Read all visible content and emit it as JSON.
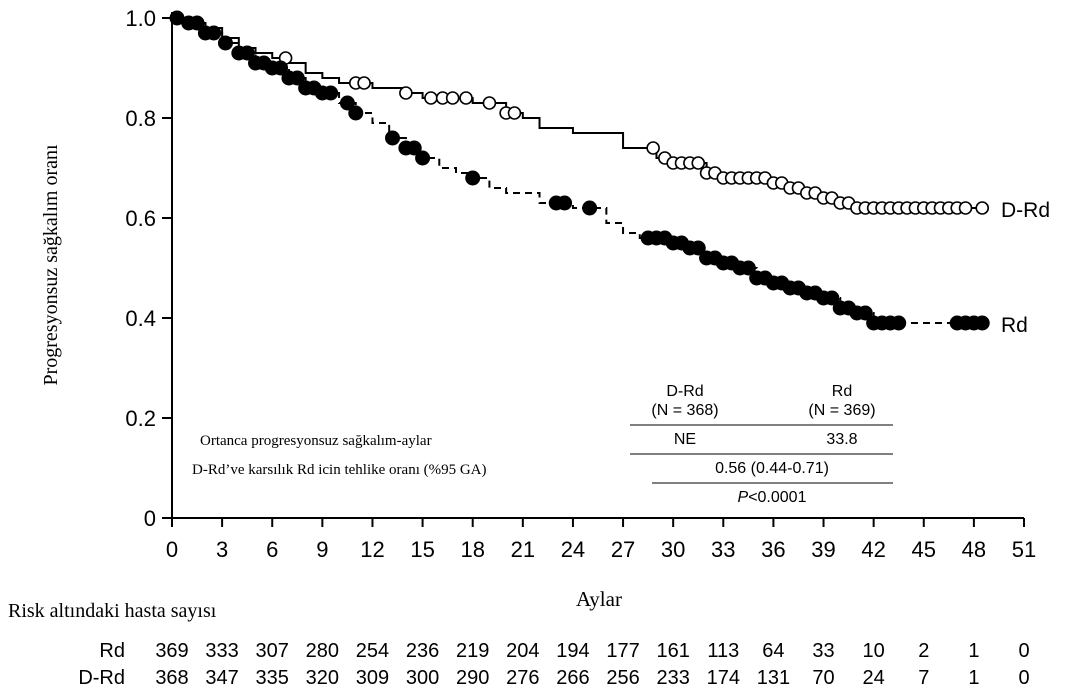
{
  "chart_data": {
    "type": "line",
    "subtype": "kaplan-meier",
    "title": "",
    "xlabel": "Aylar",
    "ylabel": "Progresyonsuz sağkalım oranı",
    "xlim": [
      0,
      51
    ],
    "ylim": [
      0,
      1.0
    ],
    "x_ticks": [
      0,
      3,
      6,
      9,
      12,
      15,
      18,
      21,
      24,
      27,
      30,
      33,
      36,
      39,
      42,
      45,
      48,
      51
    ],
    "y_ticks": [
      "0",
      "0.2",
      "0.4",
      "0.6",
      "0.8",
      "1.0"
    ],
    "grid": false,
    "series": [
      {
        "name": "D-Rd",
        "color": "#000000",
        "line_style": "solid",
        "censor_marker": "open-circle",
        "points": [
          [
            0,
            1.0
          ],
          [
            1,
            0.99
          ],
          [
            2,
            0.98
          ],
          [
            3,
            0.96
          ],
          [
            4,
            0.94
          ],
          [
            5,
            0.93
          ],
          [
            6,
            0.92
          ],
          [
            7,
            0.91
          ],
          [
            8,
            0.89
          ],
          [
            9,
            0.88
          ],
          [
            10,
            0.87
          ],
          [
            12,
            0.86
          ],
          [
            14,
            0.85
          ],
          [
            15,
            0.84
          ],
          [
            16,
            0.84
          ],
          [
            18,
            0.83
          ],
          [
            20,
            0.81
          ],
          [
            21,
            0.8
          ],
          [
            22,
            0.78
          ],
          [
            24,
            0.77
          ],
          [
            27,
            0.74
          ],
          [
            29,
            0.72
          ],
          [
            30,
            0.71
          ],
          [
            32,
            0.69
          ],
          [
            33,
            0.68
          ],
          [
            36,
            0.67
          ],
          [
            37,
            0.66
          ],
          [
            38,
            0.65
          ],
          [
            39,
            0.64
          ],
          [
            40,
            0.63
          ],
          [
            41,
            0.62
          ],
          [
            48.5,
            0.62
          ]
        ],
        "censor_x": [
          6.8,
          11,
          11.5,
          14,
          15.5,
          16.2,
          16.8,
          17.6,
          19,
          20,
          20.5,
          28.8,
          29.5,
          30,
          30.5,
          31,
          31.5,
          32,
          32.5,
          33,
          33.5,
          34,
          34.5,
          35,
          35.5,
          36,
          36.5,
          37,
          37.5,
          38,
          38.5,
          39,
          39.5,
          40,
          40.5,
          41,
          41.5,
          42,
          42.5,
          43,
          43.5,
          44,
          44.5,
          45,
          45.5,
          46,
          46.5,
          47,
          47.5,
          48.5
        ],
        "end_label": "D-Rd"
      },
      {
        "name": "Rd",
        "color": "#000000",
        "line_style": "dashed",
        "censor_marker": "filled-circle",
        "points": [
          [
            0,
            1.0
          ],
          [
            1,
            0.99
          ],
          [
            2,
            0.97
          ],
          [
            3,
            0.95
          ],
          [
            4,
            0.93
          ],
          [
            5,
            0.91
          ],
          [
            6,
            0.9
          ],
          [
            7,
            0.88
          ],
          [
            8,
            0.86
          ],
          [
            9,
            0.85
          ],
          [
            10,
            0.83
          ],
          [
            11,
            0.81
          ],
          [
            12,
            0.79
          ],
          [
            13,
            0.76
          ],
          [
            14,
            0.74
          ],
          [
            15,
            0.72
          ],
          [
            16,
            0.7
          ],
          [
            17,
            0.69
          ],
          [
            18,
            0.68
          ],
          [
            19,
            0.66
          ],
          [
            20,
            0.65
          ],
          [
            22,
            0.63
          ],
          [
            24,
            0.62
          ],
          [
            26,
            0.59
          ],
          [
            27,
            0.57
          ],
          [
            28,
            0.56
          ],
          [
            30,
            0.55
          ],
          [
            31,
            0.54
          ],
          [
            32,
            0.52
          ],
          [
            33,
            0.51
          ],
          [
            34,
            0.5
          ],
          [
            35,
            0.48
          ],
          [
            36,
            0.47
          ],
          [
            37,
            0.46
          ],
          [
            38,
            0.45
          ],
          [
            39,
            0.44
          ],
          [
            40,
            0.42
          ],
          [
            41,
            0.41
          ],
          [
            42,
            0.39
          ],
          [
            48.5,
            0.39
          ]
        ],
        "censor_x": [
          0.3,
          1,
          1.5,
          2,
          2.5,
          3.2,
          4,
          4.5,
          5,
          5.5,
          6,
          6.5,
          7,
          7.5,
          8,
          8.5,
          9,
          9.5,
          10.5,
          11,
          13.2,
          14,
          14.5,
          15,
          18,
          23,
          23.5,
          25,
          28.5,
          29,
          29.5,
          30,
          30.5,
          31,
          31.5,
          32,
          32.5,
          33,
          33.5,
          34,
          34.5,
          35,
          35.5,
          36,
          36.5,
          37,
          37.5,
          38,
          38.5,
          39,
          39.5,
          40,
          40.5,
          41,
          41.5,
          42,
          42.5,
          43,
          43.5,
          47,
          47.5,
          48,
          48.5
        ],
        "end_label": "Rd"
      }
    ],
    "inset_table": {
      "col_headers": [
        {
          "name": "D-Rd",
          "n": "(N = 368)"
        },
        {
          "name": "Rd",
          "n": "(N = 369)"
        }
      ],
      "rows": [
        {
          "label": "Ortanca progresyonsuz sağkalım-aylar",
          "values": [
            "NE",
            "33.8"
          ]
        },
        {
          "label": "D-Rd’ve karsılık Rd icin tehlike oranı (%95 GA)",
          "merged": "0.56 (0.44-0.71)"
        },
        {
          "label": "",
          "merged_p_italic": "P",
          "merged_p_rest": "<0.0001"
        }
      ]
    },
    "risk_table": {
      "title": "Risk altındaki hasta sayısı",
      "rows": [
        {
          "label": "Rd",
          "values": [
            "369",
            "333",
            "307",
            "280",
            "254",
            "236",
            "219",
            "204",
            "194",
            "177",
            "161",
            "113",
            "64",
            "33",
            "10",
            "2",
            "1",
            "0"
          ]
        },
        {
          "label": "D-Rd",
          "values": [
            "368",
            "347",
            "335",
            "320",
            "309",
            "300",
            "290",
            "276",
            "266",
            "256",
            "233",
            "174",
            "131",
            "70",
            "24",
            "7",
            "1",
            "0"
          ]
        }
      ]
    }
  }
}
